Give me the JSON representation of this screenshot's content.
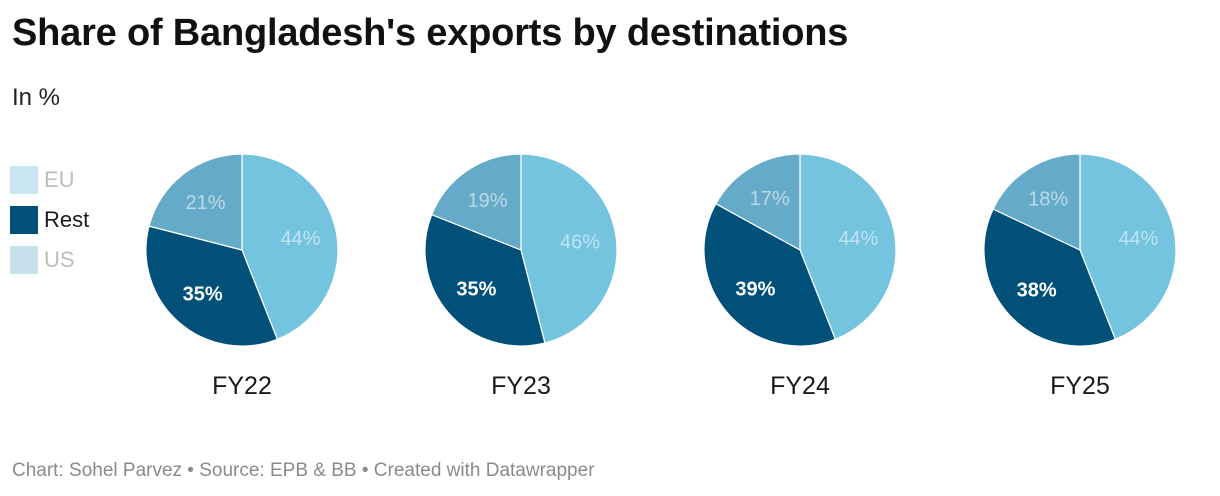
{
  "header": {
    "title": "Share of Bangladesh's exports by destinations",
    "subtitle": "In %"
  },
  "footer": {
    "text": "Chart: Sohel Parvez • Source: EPB & BB • Created with Datawrapper"
  },
  "colors": {
    "EU": "#74c4e0",
    "Rest": "#00507a",
    "US": "#65abc9",
    "label_light": "#ffffff",
    "label_dark": "#ffffff",
    "legend_dim": "#bdbdbd"
  },
  "legend": {
    "items": [
      {
        "name": "EU",
        "label": "EU",
        "color": "#b5dfee",
        "dim": true
      },
      {
        "name": "Rest",
        "label": "Rest",
        "color": "#00507a",
        "dim": false
      },
      {
        "name": "US",
        "label": "US",
        "color": "#b3d5e4",
        "dim": true
      }
    ]
  },
  "chart_data": {
    "type": "pie",
    "categories": [
      "EU",
      "Rest",
      "US"
    ],
    "series": [
      {
        "name": "FY22",
        "values": [
          44,
          35,
          21
        ],
        "labels": [
          "44%",
          "35%",
          "21%"
        ]
      },
      {
        "name": "FY23",
        "values": [
          46,
          35,
          19
        ],
        "labels": [
          "46%",
          "35%",
          "19%"
        ]
      },
      {
        "name": "FY24",
        "values": [
          44,
          39,
          17
        ],
        "labels": [
          "44%",
          "39%",
          "17%"
        ]
      },
      {
        "name": "FY25",
        "values": [
          44,
          38,
          18
        ],
        "labels": [
          "44%",
          "38%",
          "18%"
        ]
      }
    ],
    "start_angle_deg": 0,
    "direction": "clockwise",
    "legend": "left"
  }
}
